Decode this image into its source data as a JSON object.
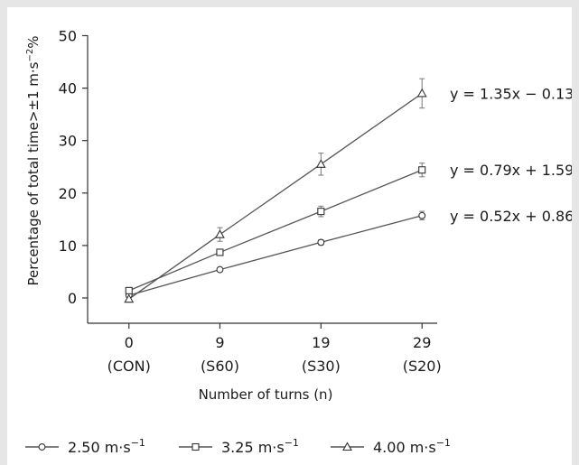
{
  "chart_data": {
    "type": "line",
    "x": [
      0,
      9,
      19,
      29
    ],
    "categories": [
      "(CON)",
      "(S60)",
      "(S30)",
      "(S20)"
    ],
    "xlabel": "Number of turns (n)",
    "ylabel": "Percentage of total time>±1 m·s",
    "ylabel_sup": "−2",
    "ylabel_suffix": "%",
    "ylim": [
      -5,
      50
    ],
    "yticks": [
      0,
      10,
      20,
      30,
      40,
      50
    ],
    "grid": false,
    "legend_position": "bottom",
    "series": [
      {
        "name": "2.50 m·s",
        "name_sup": "−1",
        "marker": "circle",
        "values": [
          0.5,
          5.4,
          10.6,
          15.7
        ],
        "errors": [
          0.4,
          0.4,
          0.5,
          0.8
        ],
        "fit_label": "y = 0.52x + 0.86"
      },
      {
        "name": "3.25 m·s",
        "name_sup": "−1",
        "marker": "square",
        "values": [
          1.4,
          8.7,
          16.5,
          24.4
        ],
        "errors": [
          0.4,
          0.6,
          1.0,
          1.3
        ],
        "fit_label": "y = 0.79x + 1.59"
      },
      {
        "name": "4.00 m·s",
        "name_sup": "−1",
        "marker": "triangle",
        "values": [
          -0.2,
          12.1,
          25.5,
          39.0
        ],
        "errors": [
          0.6,
          1.3,
          2.1,
          2.8
        ],
        "fit_label": "y = 1.35x − 0.13"
      }
    ]
  }
}
